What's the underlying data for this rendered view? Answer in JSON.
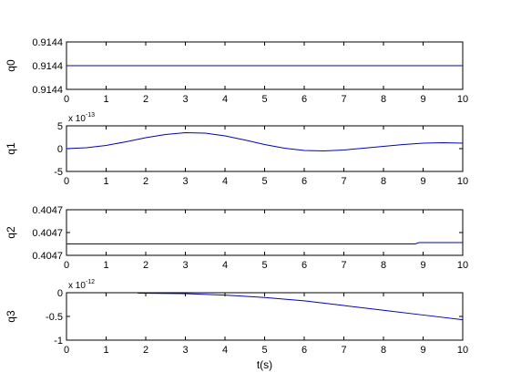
{
  "colors": {
    "line": "#0000cc",
    "axes": "#000000",
    "background": "#ffffff"
  },
  "chart_data": [
    {
      "type": "line",
      "ylabel": "q0",
      "xlabel": "",
      "xlim": [
        0,
        10
      ],
      "ylim": [
        0,
        1
      ],
      "x_ticks": [
        "0",
        "1",
        "2",
        "3",
        "4",
        "5",
        "6",
        "7",
        "8",
        "9",
        "10"
      ],
      "y_ticks": [
        {
          "value": 1,
          "label": "0.9144"
        },
        {
          "value": 0.5,
          "label": "0.9144"
        },
        {
          "value": 0,
          "label": "0.9144"
        }
      ],
      "exponent_label": "",
      "series": [
        {
          "x": [
            0,
            10
          ],
          "y": [
            0.5,
            0.5
          ]
        }
      ]
    },
    {
      "type": "line",
      "ylabel": "q1",
      "xlabel": "",
      "xlim": [
        0,
        10
      ],
      "ylim": [
        -5,
        5
      ],
      "x_ticks": [
        "0",
        "1",
        "2",
        "3",
        "4",
        "5",
        "6",
        "7",
        "8",
        "9",
        "10"
      ],
      "y_ticks": [
        {
          "value": 5,
          "label": "5"
        },
        {
          "value": 0,
          "label": "0"
        },
        {
          "value": -5,
          "label": "-5"
        }
      ],
      "exponent_label": "x 10",
      "exponent_power": "-13",
      "series": [
        {
          "x": [
            0,
            0.5,
            1,
            1.5,
            2,
            2.5,
            3,
            3.5,
            4,
            4.5,
            5,
            5.5,
            6,
            6.5,
            7,
            7.5,
            8,
            8.5,
            9,
            9.5,
            10
          ],
          "y": [
            0,
            0.2,
            0.7,
            1.5,
            2.4,
            3.1,
            3.5,
            3.4,
            2.8,
            1.9,
            0.9,
            0.1,
            -0.4,
            -0.5,
            -0.3,
            0.1,
            0.5,
            0.9,
            1.2,
            1.3,
            1.2
          ]
        }
      ]
    },
    {
      "type": "line",
      "ylabel": "q2",
      "xlabel": "",
      "xlim": [
        0,
        10
      ],
      "ylim": [
        0,
        1
      ],
      "x_ticks": [
        "0",
        "1",
        "2",
        "3",
        "4",
        "5",
        "6",
        "7",
        "8",
        "9",
        "10"
      ],
      "y_ticks": [
        {
          "value": 1,
          "label": "0.4047"
        },
        {
          "value": 0.5,
          "label": "0.4047"
        },
        {
          "value": 0,
          "label": "0.4047"
        }
      ],
      "exponent_label": "",
      "series": [
        {
          "x": [
            0,
            8.8,
            8.9,
            10
          ],
          "y": [
            0.25,
            0.25,
            0.28,
            0.28
          ]
        }
      ]
    },
    {
      "type": "line",
      "ylabel": "q3",
      "xlabel": "t(s)",
      "xlim": [
        0,
        10
      ],
      "ylim": [
        -1,
        0
      ],
      "x_ticks": [
        "0",
        "1",
        "2",
        "3",
        "4",
        "5",
        "6",
        "7",
        "8",
        "9",
        "10"
      ],
      "y_ticks": [
        {
          "value": 0,
          "label": "0"
        },
        {
          "value": -0.5,
          "label": "-0.5"
        },
        {
          "value": -1,
          "label": "-1"
        }
      ],
      "exponent_label": "x 10",
      "exponent_power": "-12",
      "series": [
        {
          "x": [
            1.8,
            3,
            4,
            5,
            6,
            7,
            8,
            9,
            10
          ],
          "y": [
            -0.01,
            -0.02,
            -0.05,
            -0.1,
            -0.17,
            -0.27,
            -0.37,
            -0.47,
            -0.57
          ]
        }
      ]
    }
  ]
}
